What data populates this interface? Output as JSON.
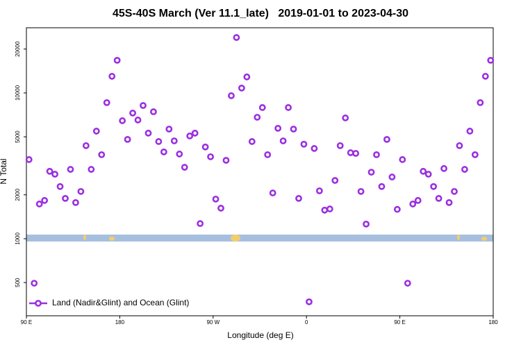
{
  "chart_data": {
    "type": "scatter",
    "title": "45S-40S March (Ver 11.1_late)   2019-01-01 to 2023-04-30",
    "xlabel": "Longitude (deg E)",
    "ylabel": "N Total",
    "log_y": true,
    "legend_position": "lower left",
    "xlim": [
      90,
      540
    ],
    "xticks": [
      {
        "value": 90,
        "label": "90 E"
      },
      {
        "value": 180,
        "label": "180"
      },
      {
        "value": 270,
        "label": "90 W"
      },
      {
        "value": 360,
        "label": "0"
      },
      {
        "value": 450,
        "label": "90 E"
      },
      {
        "value": 540,
        "label": "180"
      }
    ],
    "ylim": [
      296,
      28000
    ],
    "yticks": [
      500,
      1000,
      2000,
      5000,
      10000,
      20000
    ],
    "series": [
      {
        "name": "Land (Nadir&Glint) and Ocean (Glint)",
        "color": "#9b2fe0",
        "x": [
          92.5,
          97.5,
          102.5,
          107.5,
          112.5,
          117.5,
          122.5,
          127.5,
          132.5,
          137.5,
          142.5,
          147.5,
          152.5,
          157.5,
          162.5,
          167.5,
          172.5,
          177.5,
          182.5,
          187.5,
          192.5,
          197.5,
          202.5,
          207.5,
          212.5,
          217.5,
          222.5,
          227.5,
          232.5,
          237.5,
          242.5,
          247.5,
          252.5,
          257.5,
          262.5,
          267.5,
          272.5,
          277.5,
          282.5,
          287.5,
          292.5,
          297.5,
          302.5,
          307.5,
          312.5,
          317.5,
          322.5,
          327.5,
          332.5,
          337.5,
          342.5,
          347.5,
          352.5,
          357.5,
          362.5,
          367.5,
          372.5,
          377.5,
          382.5,
          387.5,
          392.5,
          397.5,
          402.5,
          407.5,
          412.5,
          417.5,
          422.5,
          427.5,
          432.5,
          437.5,
          442.5,
          447.5,
          452.5,
          457.5,
          462.5,
          467.5,
          472.5,
          477.5,
          482.5,
          487.5,
          492.5,
          497.5,
          502.5,
          507.5,
          512.5,
          517.5,
          522.5,
          527.5,
          532.5,
          537.5
        ],
        "values": [
          3490,
          495,
          1730,
          1830,
          2900,
          2770,
          2280,
          1890,
          2990,
          1770,
          2110,
          4350,
          2990,
          5470,
          3770,
          8580,
          13010,
          16750,
          6450,
          4800,
          7280,
          6520,
          8200,
          5300,
          7430,
          4640,
          3940,
          5650,
          4690,
          3810,
          3090,
          5070,
          5300,
          1270,
          4260,
          3650,
          1870,
          1620,
          3450,
          9570,
          24000,
          10800,
          12880,
          4640,
          6810,
          7940,
          3770,
          2060,
          5720,
          4690,
          7940,
          5650,
          1890,
          4450,
          369,
          4160,
          2130,
          1570,
          1600,
          2510,
          4350,
          6740,
          3890,
          3850,
          2110,
          1260,
          2860,
          3770,
          2280,
          4800,
          2650,
          1590,
          3490,
          495,
          1730,
          1830,
          2900,
          2770,
          2280,
          1890,
          3030,
          1770,
          2110,
          4350,
          2990,
          5470,
          3770,
          8580,
          13010,
          16750
        ]
      }
    ]
  }
}
